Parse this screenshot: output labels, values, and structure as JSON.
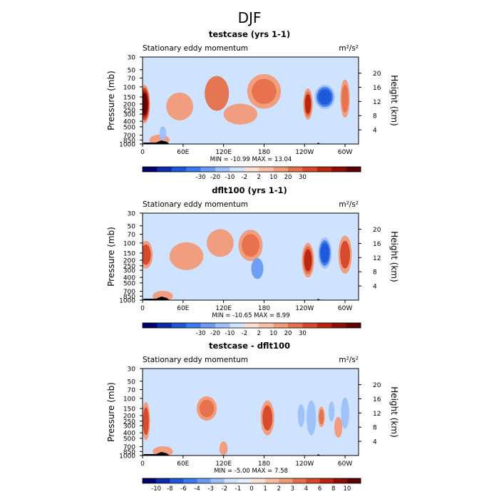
{
  "figure_title": "DJF",
  "colors": {
    "frame": "#000000",
    "background_fill": "#cfe3ff",
    "topography": "#000000",
    "colorbar_outline": "#000000"
  },
  "chart_data": [
    {
      "type": "heatmap",
      "title": "testcase (yrs 1-1)",
      "subtitle_left": "Stationary eddy momentum",
      "units": "m²/s²",
      "xlabel": "",
      "ylabel": "Pressure (mb)",
      "ylabel_right": "Height (km)",
      "x_ticks": [
        "0",
        "60E",
        "120E",
        "180",
        "120W",
        "60W"
      ],
      "x_tick_values": [
        0,
        60,
        120,
        180,
        240,
        300
      ],
      "xlim": [
        0,
        320
      ],
      "y_ticks": [
        "30",
        "50",
        "70",
        "100",
        "150",
        "200",
        "250",
        "300",
        "400",
        "500",
        "700",
        "850",
        "1000"
      ],
      "y_tick_values": [
        30,
        50,
        70,
        100,
        150,
        200,
        250,
        300,
        400,
        500,
        700,
        850,
        1000
      ],
      "ylim": [
        1000,
        30
      ],
      "y_scale": "log",
      "height_ticks": [
        "4",
        "8",
        "12",
        "16",
        "20"
      ],
      "height_tick_values": [
        4,
        8,
        12,
        16,
        20
      ],
      "stats_text": "MIN = -10.99   MAX =  13.04",
      "min": -10.99,
      "max": 13.04,
      "colorbar": {
        "labels": [
          "-30",
          "-20",
          "-10",
          "-2",
          "2",
          "10",
          "20",
          "30"
        ],
        "colors": [
          "#00006e",
          "#0a2ca8",
          "#1d56d6",
          "#3b79ee",
          "#6a9cf6",
          "#9dc0fb",
          "#cfe3ff",
          "#fde0d0",
          "#f8bfa5",
          "#f19a78",
          "#e6704a",
          "#d5462a",
          "#b9230f",
          "#8f0b05",
          "#5e0000"
        ]
      },
      "features": [
        {
          "lon": 3,
          "p": 200,
          "value": 12,
          "rx": 8,
          "ry": 0.55
        },
        {
          "lon": 55,
          "p": 220,
          "value": 3,
          "rx": 20,
          "ry": 0.4
        },
        {
          "lon": 110,
          "p": 130,
          "value": 4,
          "rx": 18,
          "ry": 0.5
        },
        {
          "lon": 180,
          "p": 120,
          "value": 5,
          "rx": 25,
          "ry": 0.5
        },
        {
          "lon": 145,
          "p": 300,
          "value": 2,
          "rx": 25,
          "ry": 0.3
        },
        {
          "lon": 245,
          "p": 200,
          "value": 8,
          "rx": 7,
          "ry": 0.45
        },
        {
          "lon": 270,
          "p": 150,
          "value": -9,
          "rx": 15,
          "ry": 0.35
        },
        {
          "lon": 300,
          "p": 160,
          "value": 5,
          "rx": 7,
          "ry": 0.55
        },
        {
          "lon": 25,
          "p": 850,
          "value": 3,
          "rx": 15,
          "ry": 0.15
        },
        {
          "lon": 30,
          "p": 650,
          "value": -3,
          "rx": 5,
          "ry": 0.2
        }
      ]
    },
    {
      "type": "heatmap",
      "title": "dflt100 (yrs 1-1)",
      "subtitle_left": "Stationary eddy momentum",
      "units": "m²/s²",
      "xlabel": "",
      "ylabel": "Pressure (mb)",
      "ylabel_right": "Height (km)",
      "x_ticks": [
        "0",
        "60E",
        "120E",
        "180",
        "120W",
        "60W"
      ],
      "x_tick_values": [
        0,
        60,
        120,
        180,
        240,
        300
      ],
      "xlim": [
        0,
        320
      ],
      "y_ticks": [
        "30",
        "50",
        "70",
        "100",
        "150",
        "200",
        "250",
        "300",
        "400",
        "500",
        "700",
        "850",
        "1000"
      ],
      "y_tick_values": [
        30,
        50,
        70,
        100,
        150,
        200,
        250,
        300,
        400,
        500,
        700,
        850,
        1000
      ],
      "ylim": [
        1000,
        30
      ],
      "y_scale": "log",
      "height_ticks": [
        "4",
        "8",
        "12",
        "16",
        "20"
      ],
      "height_tick_values": [
        4,
        8,
        12,
        16,
        20
      ],
      "stats_text": "MIN = -10.65   MAX =   8.99",
      "min": -10.65,
      "max": 8.99,
      "colorbar": {
        "labels": [
          "-30",
          "-20",
          "-10",
          "-2",
          "2",
          "10",
          "20",
          "30"
        ],
        "colors": [
          "#00006e",
          "#0a2ca8",
          "#1d56d6",
          "#3b79ee",
          "#6a9cf6",
          "#9dc0fb",
          "#cfe3ff",
          "#fde0d0",
          "#f8bfa5",
          "#f19a78",
          "#e6704a",
          "#d5462a",
          "#b9230f",
          "#8f0b05",
          "#5e0000"
        ]
      },
      "features": [
        {
          "lon": 5,
          "p": 160,
          "value": 6,
          "rx": 10,
          "ry": 0.4
        },
        {
          "lon": 65,
          "p": 170,
          "value": 2,
          "rx": 25,
          "ry": 0.4
        },
        {
          "lon": 115,
          "p": 100,
          "value": 2,
          "rx": 20,
          "ry": 0.4
        },
        {
          "lon": 160,
          "p": 110,
          "value": 5,
          "rx": 18,
          "ry": 0.45
        },
        {
          "lon": 170,
          "p": 280,
          "value": -4,
          "rx": 9,
          "ry": 0.3
        },
        {
          "lon": 245,
          "p": 200,
          "value": 8,
          "rx": 9,
          "ry": 0.5
        },
        {
          "lon": 270,
          "p": 150,
          "value": -9,
          "rx": 10,
          "ry": 0.45
        },
        {
          "lon": 300,
          "p": 160,
          "value": 6,
          "rx": 10,
          "ry": 0.55
        },
        {
          "lon": 30,
          "p": 850,
          "value": 3,
          "rx": 15,
          "ry": 0.15
        }
      ]
    },
    {
      "type": "heatmap",
      "title": "testcase - dflt100",
      "subtitle_left": "Stationary eddy momentum",
      "units": "m²/s²",
      "xlabel": "",
      "ylabel": "Pressure (mb)",
      "ylabel_right": "Height (km)",
      "x_ticks": [
        "0",
        "60E",
        "120E",
        "180",
        "120W",
        "60W"
      ],
      "x_tick_values": [
        0,
        60,
        120,
        180,
        240,
        300
      ],
      "xlim": [
        0,
        320
      ],
      "y_ticks": [
        "30",
        "50",
        "70",
        "100",
        "150",
        "200",
        "250",
        "300",
        "400",
        "500",
        "700",
        "850",
        "1000"
      ],
      "y_tick_values": [
        30,
        50,
        70,
        100,
        150,
        200,
        250,
        300,
        400,
        500,
        700,
        850,
        1000
      ],
      "ylim": [
        1000,
        30
      ],
      "y_scale": "log",
      "height_ticks": [
        "4",
        "8",
        "12",
        "16",
        "20"
      ],
      "height_tick_values": [
        4,
        8,
        12,
        16,
        20
      ],
      "stats_text": "MIN =  -5.00   MAX =   7.58",
      "min": -5.0,
      "max": 7.58,
      "colorbar": {
        "labels": [
          "-10",
          "-8",
          "-6",
          "-4",
          "-3",
          "-2",
          "-1",
          "0",
          "1",
          "2",
          "3",
          "4",
          "6",
          "8",
          "10"
        ],
        "colors": [
          "#00006e",
          "#0a2ca8",
          "#1d56d6",
          "#3b79ee",
          "#6a9cf6",
          "#9dc0fb",
          "#cfe3ff",
          "#e6f0ff",
          "#fde0d0",
          "#f8bfa5",
          "#f19a78",
          "#e6704a",
          "#d5462a",
          "#b9230f",
          "#8f0b05",
          "#5e0000"
        ]
      },
      "features": [
        {
          "lon": 5,
          "p": 250,
          "value": 6,
          "rx": 6,
          "ry": 0.55
        },
        {
          "lon": 25,
          "p": 150,
          "value": -2,
          "rx": 5,
          "ry": 0.3
        },
        {
          "lon": 95,
          "p": 150,
          "value": 5,
          "rx": 15,
          "ry": 0.35
        },
        {
          "lon": 150,
          "p": 200,
          "value": -3,
          "rx": 5,
          "ry": 0.35
        },
        {
          "lon": 185,
          "p": 220,
          "value": 6,
          "rx": 10,
          "ry": 0.5
        },
        {
          "lon": 235,
          "p": 200,
          "value": -5,
          "rx": 7,
          "ry": 0.45
        },
        {
          "lon": 250,
          "p": 220,
          "value": -4,
          "rx": 7,
          "ry": 0.5
        },
        {
          "lon": 265,
          "p": 210,
          "value": 5,
          "rx": 5,
          "ry": 0.3
        },
        {
          "lon": 280,
          "p": 170,
          "value": -5,
          "rx": 6,
          "ry": 0.4
        },
        {
          "lon": 300,
          "p": 180,
          "value": -4,
          "rx": 6,
          "ry": 0.45
        },
        {
          "lon": 290,
          "p": 320,
          "value": 3,
          "rx": 6,
          "ry": 0.3
        },
        {
          "lon": 120,
          "p": 750,
          "value": 2,
          "rx": 6,
          "ry": 0.2
        },
        {
          "lon": 30,
          "p": 850,
          "value": 2,
          "rx": 15,
          "ry": 0.15
        }
      ]
    }
  ]
}
